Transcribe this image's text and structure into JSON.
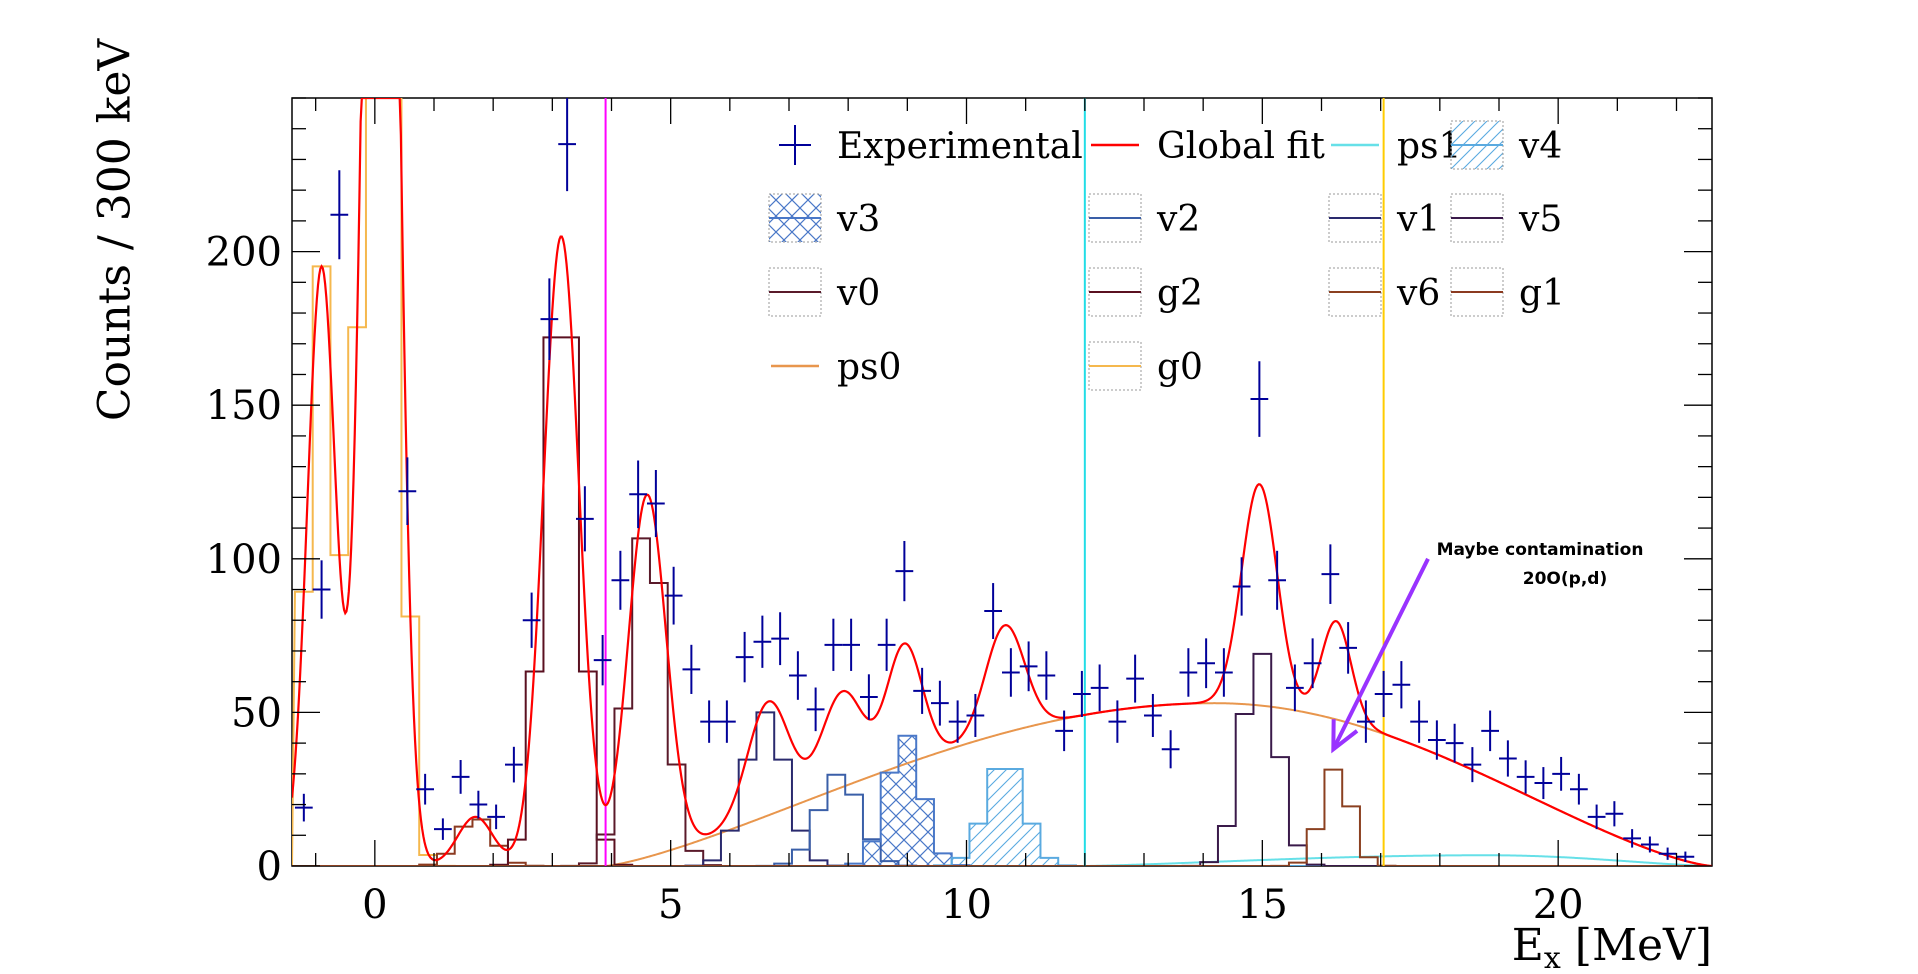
{
  "chart_data": {
    "type": "histogram",
    "title": "",
    "xlabel_main": "E",
    "xlabel_sub": "x",
    "xlabel_rest": " [MeV]",
    "ylabel": "Counts / 300 keV",
    "xlim": [
      -1.4,
      22.6
    ],
    "ylim": [
      0,
      250
    ],
    "x_ticks": [
      0,
      5,
      10,
      15,
      20
    ],
    "y_ticks": [
      0,
      50,
      100,
      150,
      200
    ],
    "vertical_lines": [
      {
        "x": 3.9,
        "color": "#ff00ff"
      },
      {
        "x": 12.0,
        "color": "#22dde6"
      },
      {
        "x": 17.05,
        "color": "#ffcc00"
      }
    ],
    "annotation": {
      "lines": [
        "Maybe contamination",
        "20O(p,d)"
      ],
      "arrow_from": [
        17.8,
        100
      ],
      "arrow_to": [
        16.2,
        38
      ],
      "color": "#9933ff"
    },
    "experimental": {
      "name": "Experimental",
      "color": "#000099",
      "x_halfwidth": 0.15,
      "points": [
        [
          -1.2,
          19,
          4.5
        ],
        [
          -0.9,
          90,
          9.5
        ],
        [
          -0.6,
          212,
          14.5
        ],
        [
          0.55,
          122,
          11
        ],
        [
          0.85,
          25,
          5
        ],
        [
          1.15,
          12,
          3.5
        ],
        [
          1.45,
          29,
          5.5
        ],
        [
          1.75,
          20,
          4.5
        ],
        [
          2.05,
          16,
          4
        ],
        [
          2.35,
          33,
          5.8
        ],
        [
          2.65,
          80,
          9
        ],
        [
          2.95,
          178,
          13.3
        ],
        [
          3.25,
          235,
          15.3
        ],
        [
          3.55,
          113,
          10.6
        ],
        [
          3.85,
          67,
          8.2
        ],
        [
          4.15,
          93,
          9.6
        ],
        [
          4.45,
          121,
          11
        ],
        [
          4.75,
          118,
          10.9
        ],
        [
          5.05,
          88,
          9.4
        ],
        [
          5.35,
          64,
          8
        ],
        [
          5.65,
          47,
          6.9
        ],
        [
          5.95,
          47,
          6.9
        ],
        [
          6.25,
          68,
          8.2
        ],
        [
          6.55,
          73,
          8.5
        ],
        [
          6.85,
          74,
          8.6
        ],
        [
          7.15,
          62,
          7.9
        ],
        [
          7.45,
          51,
          7.1
        ],
        [
          7.75,
          72,
          8.5
        ],
        [
          8.05,
          72,
          8.5
        ],
        [
          8.35,
          55,
          7.4
        ],
        [
          8.65,
          72,
          8.5
        ],
        [
          8.95,
          96,
          9.8
        ],
        [
          9.25,
          57,
          7.5
        ],
        [
          9.55,
          53,
          7.3
        ],
        [
          9.85,
          47,
          6.9
        ],
        [
          10.15,
          49,
          7
        ],
        [
          10.45,
          83,
          9.1
        ],
        [
          10.75,
          63,
          7.9
        ],
        [
          11.05,
          65,
          8.1
        ],
        [
          11.35,
          62,
          7.9
        ],
        [
          11.65,
          44,
          6.6
        ],
        [
          11.95,
          56,
          7.5
        ],
        [
          12.25,
          58,
          7.6
        ],
        [
          12.55,
          47,
          6.9
        ],
        [
          12.85,
          61,
          7.8
        ],
        [
          13.15,
          49,
          7
        ],
        [
          13.45,
          38,
          6.2
        ],
        [
          13.75,
          63,
          7.9
        ],
        [
          14.05,
          66,
          8.1
        ],
        [
          14.35,
          63,
          7.9
        ],
        [
          14.65,
          91,
          9.5
        ],
        [
          14.95,
          152,
          12.3
        ],
        [
          15.25,
          93,
          9.6
        ],
        [
          15.55,
          58,
          7.6
        ],
        [
          15.85,
          66,
          8.1
        ],
        [
          16.15,
          95,
          9.7
        ],
        [
          16.45,
          71,
          8.4
        ],
        [
          16.75,
          47,
          6.9
        ],
        [
          17.05,
          56,
          7.5
        ],
        [
          17.35,
          59,
          7.7
        ],
        [
          17.65,
          47,
          6.9
        ],
        [
          17.95,
          41,
          6.4
        ],
        [
          18.25,
          40,
          6.3
        ],
        [
          18.55,
          33,
          5.7
        ],
        [
          18.85,
          44,
          6.6
        ],
        [
          19.15,
          35,
          5.9
        ],
        [
          19.45,
          29,
          5.4
        ],
        [
          19.75,
          27,
          5.2
        ],
        [
          20.05,
          30,
          5.5
        ],
        [
          20.35,
          25,
          5
        ],
        [
          20.65,
          16,
          4
        ],
        [
          20.95,
          17,
          4.1
        ],
        [
          21.25,
          9,
          3
        ],
        [
          21.55,
          7,
          2.6
        ],
        [
          21.85,
          4,
          2
        ],
        [
          22.15,
          3,
          1.7
        ]
      ]
    },
    "global_fit": {
      "name": "Global fit",
      "color": "#ff0000",
      "baseline": {
        "start": 3.9,
        "peak_x": 14.2,
        "peak_y": 53,
        "end": 22.6
      },
      "peaks": [
        {
          "x": -0.9,
          "a": 195,
          "s": 0.24
        },
        {
          "x": 0.1,
          "a": 600,
          "s": 0.25
        },
        {
          "x": 1.7,
          "a": 16,
          "s": 0.3
        },
        {
          "x": 3.15,
          "a": 205,
          "s": 0.3
        },
        {
          "x": 4.6,
          "a": 118,
          "s": 0.32
        },
        {
          "x": 6.65,
          "a": 37,
          "s": 0.35
        },
        {
          "x": 7.9,
          "a": 31,
          "s": 0.35
        },
        {
          "x": 8.95,
          "a": 39,
          "s": 0.3
        },
        {
          "x": 10.65,
          "a": 35,
          "s": 0.33
        },
        {
          "x": 14.95,
          "a": 72,
          "s": 0.3
        },
        {
          "x": 16.25,
          "a": 32,
          "s": 0.25
        }
      ]
    },
    "components": [
      {
        "name": "ps0",
        "color": "#e8964d",
        "kind": "phase",
        "start": 3.9,
        "peak_x": 14.2,
        "peak_y": 53,
        "end": 22.6
      },
      {
        "name": "ps1",
        "color": "#66e0e8",
        "kind": "phase",
        "start": 12.0,
        "peak_x": 18.8,
        "peak_y": 3.5,
        "end": 22.6
      },
      {
        "name": "g0",
        "color": "#f5b84d",
        "kind": "peaks",
        "peaks": [
          {
            "x": -0.9,
            "a": 195,
            "s": 0.24
          },
          {
            "x": 0.1,
            "a": 600,
            "s": 0.25
          }
        ]
      },
      {
        "name": "g1",
        "color": "#8b3a20",
        "kind": "peaks",
        "peaks": [
          {
            "x": 1.7,
            "a": 16,
            "s": 0.3
          }
        ]
      },
      {
        "name": "g2",
        "color": "#5a1020",
        "kind": "peaks",
        "peaks": [
          {
            "x": 3.15,
            "a": 195,
            "s": 0.3
          }
        ]
      },
      {
        "name": "v0",
        "color": "#5a1a2a",
        "kind": "peaks",
        "peaks": [
          {
            "x": 4.6,
            "a": 112,
            "s": 0.32
          }
        ]
      },
      {
        "name": "v1",
        "color": "#2a2a6e",
        "kind": "peaks",
        "peaks": [
          {
            "x": 6.6,
            "a": 50,
            "s": 0.35
          }
        ]
      },
      {
        "name": "v2",
        "color": "#3a5fa8",
        "kind": "peaks",
        "peaks": [
          {
            "x": 7.85,
            "a": 30,
            "s": 0.35
          }
        ]
      },
      {
        "name": "v3",
        "color": "#4a78c8",
        "kind": "peaks",
        "hatch": "cross",
        "peaks": [
          {
            "x": 8.95,
            "a": 43,
            "s": 0.3
          }
        ]
      },
      {
        "name": "v4",
        "color": "#5aaae0",
        "kind": "peaks",
        "hatch": "diag",
        "peaks": [
          {
            "x": 10.65,
            "a": 35,
            "s": 0.33
          }
        ]
      },
      {
        "name": "v5",
        "color": "#3a1a4a",
        "kind": "peaks",
        "peaks": [
          {
            "x": 14.95,
            "a": 70,
            "s": 0.3
          }
        ]
      },
      {
        "name": "v6",
        "color": "#8b4020",
        "kind": "peaks",
        "peaks": [
          {
            "x": 16.25,
            "a": 32,
            "s": 0.25
          }
        ]
      }
    ],
    "legend": [
      {
        "label": "Experimental",
        "style": "error"
      },
      {
        "label": "Global fit",
        "style": "line",
        "ref": "global_fit"
      },
      {
        "label": "ps1",
        "style": "line",
        "ref": "ps1"
      },
      {
        "label": "v4",
        "style": "hatch-diag",
        "ref": "v4"
      },
      {
        "label": "v3",
        "style": "hatch-cross",
        "ref": "v3"
      },
      {
        "label": "v2",
        "style": "box",
        "ref": "v2"
      },
      {
        "label": "v1",
        "style": "box",
        "ref": "v1"
      },
      {
        "label": "v5",
        "style": "box",
        "ref": "v5"
      },
      {
        "label": "v0",
        "style": "box",
        "ref": "v0"
      },
      {
        "label": "g2",
        "style": "box",
        "ref": "g2"
      },
      {
        "label": "v6",
        "style": "box",
        "ref": "v6"
      },
      {
        "label": "g1",
        "style": "box",
        "ref": "g1"
      },
      {
        "label": "ps0",
        "style": "line",
        "ref": "ps0"
      },
      {
        "label": "g0",
        "style": "box",
        "ref": "g0"
      }
    ],
    "legend_position": "top-right",
    "grid": false
  }
}
